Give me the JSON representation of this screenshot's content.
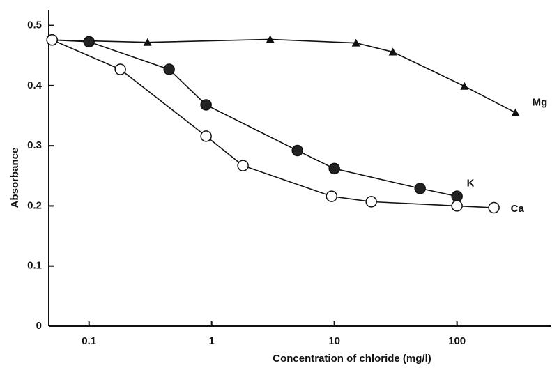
{
  "chart_data": {
    "type": "line",
    "x_label": "Concentration of chloride  (mg/l)",
    "y_label": "Absorbance",
    "log_x": true,
    "xlim": [
      0.047,
      580
    ],
    "xticks": [
      0.1,
      1,
      10,
      100
    ],
    "ylim": [
      0,
      0.525
    ],
    "yticks": [
      0,
      0.1,
      0.2,
      0.3,
      0.4,
      0.5
    ],
    "series": [
      {
        "name": "Mg",
        "color": "#111111",
        "marker": "triangle",
        "x": [
          0.05,
          0.3,
          3,
          15,
          30,
          115,
          300
        ],
        "values": [
          0.476,
          0.472,
          0.477,
          0.471,
          0.456,
          0.399,
          0.355
        ]
      },
      {
        "name": "K",
        "color": "#111111",
        "marker": "filled-circle",
        "x": [
          0.05,
          0.1,
          0.45,
          0.9,
          5,
          10,
          50,
          100
        ],
        "values": [
          0.476,
          0.473,
          0.427,
          0.368,
          0.292,
          0.262,
          0.229,
          0.216
        ]
      },
      {
        "name": "Ca",
        "color": "#111111",
        "marker": "open-circle",
        "x": [
          0.05,
          0.18,
          0.9,
          1.8,
          9.5,
          20,
          100,
          200
        ],
        "values": [
          0.476,
          0.427,
          0.316,
          0.267,
          0.216,
          0.207,
          0.2,
          0.197
        ]
      }
    ]
  }
}
